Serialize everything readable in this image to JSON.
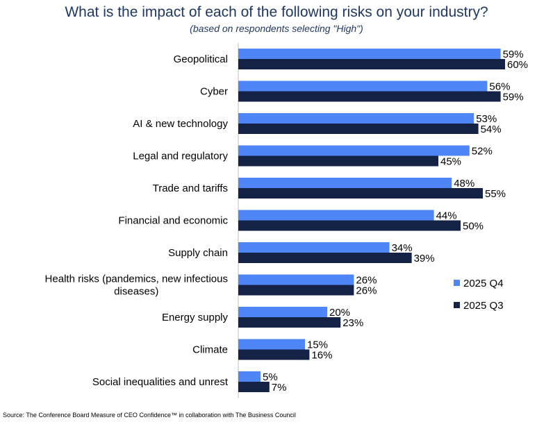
{
  "title": "What is the impact of each of the following risks on your industry?",
  "subtitle": "(based on respondents selecting \"High\")",
  "source": "Source: The Conference Board Measure of CEO Confidence™ in collaboration with The Business Council",
  "colors": {
    "q4": "#4f86f7",
    "q3": "#142246"
  },
  "chart_data": {
    "type": "bar",
    "orientation": "horizontal",
    "title": "What is the impact of each of the following risks on your industry?",
    "subtitle": "(based on respondents selecting \"High\")",
    "categories": [
      [
        "Geopolitical"
      ],
      [
        "Cyber"
      ],
      [
        "AI & new technology"
      ],
      [
        "Legal and regulatory"
      ],
      [
        "Trade and tariffs"
      ],
      [
        "Financial and economic"
      ],
      [
        "Supply chain"
      ],
      [
        "Health risks (pandemics, new infectious",
        "diseases)"
      ],
      [
        "Energy supply"
      ],
      [
        "Climate"
      ],
      [
        "Social inequalities and unrest"
      ]
    ],
    "series": [
      {
        "name": "2025 Q4",
        "values": [
          59,
          56,
          53,
          52,
          48,
          44,
          34,
          26,
          20,
          15,
          5
        ]
      },
      {
        "name": "2025 Q3",
        "values": [
          60,
          59,
          54,
          45,
          55,
          50,
          39,
          26,
          23,
          16,
          7
        ]
      }
    ],
    "value_suffix": "%",
    "xlim": [
      0,
      100
    ],
    "grid": false,
    "legend_position": "right"
  }
}
